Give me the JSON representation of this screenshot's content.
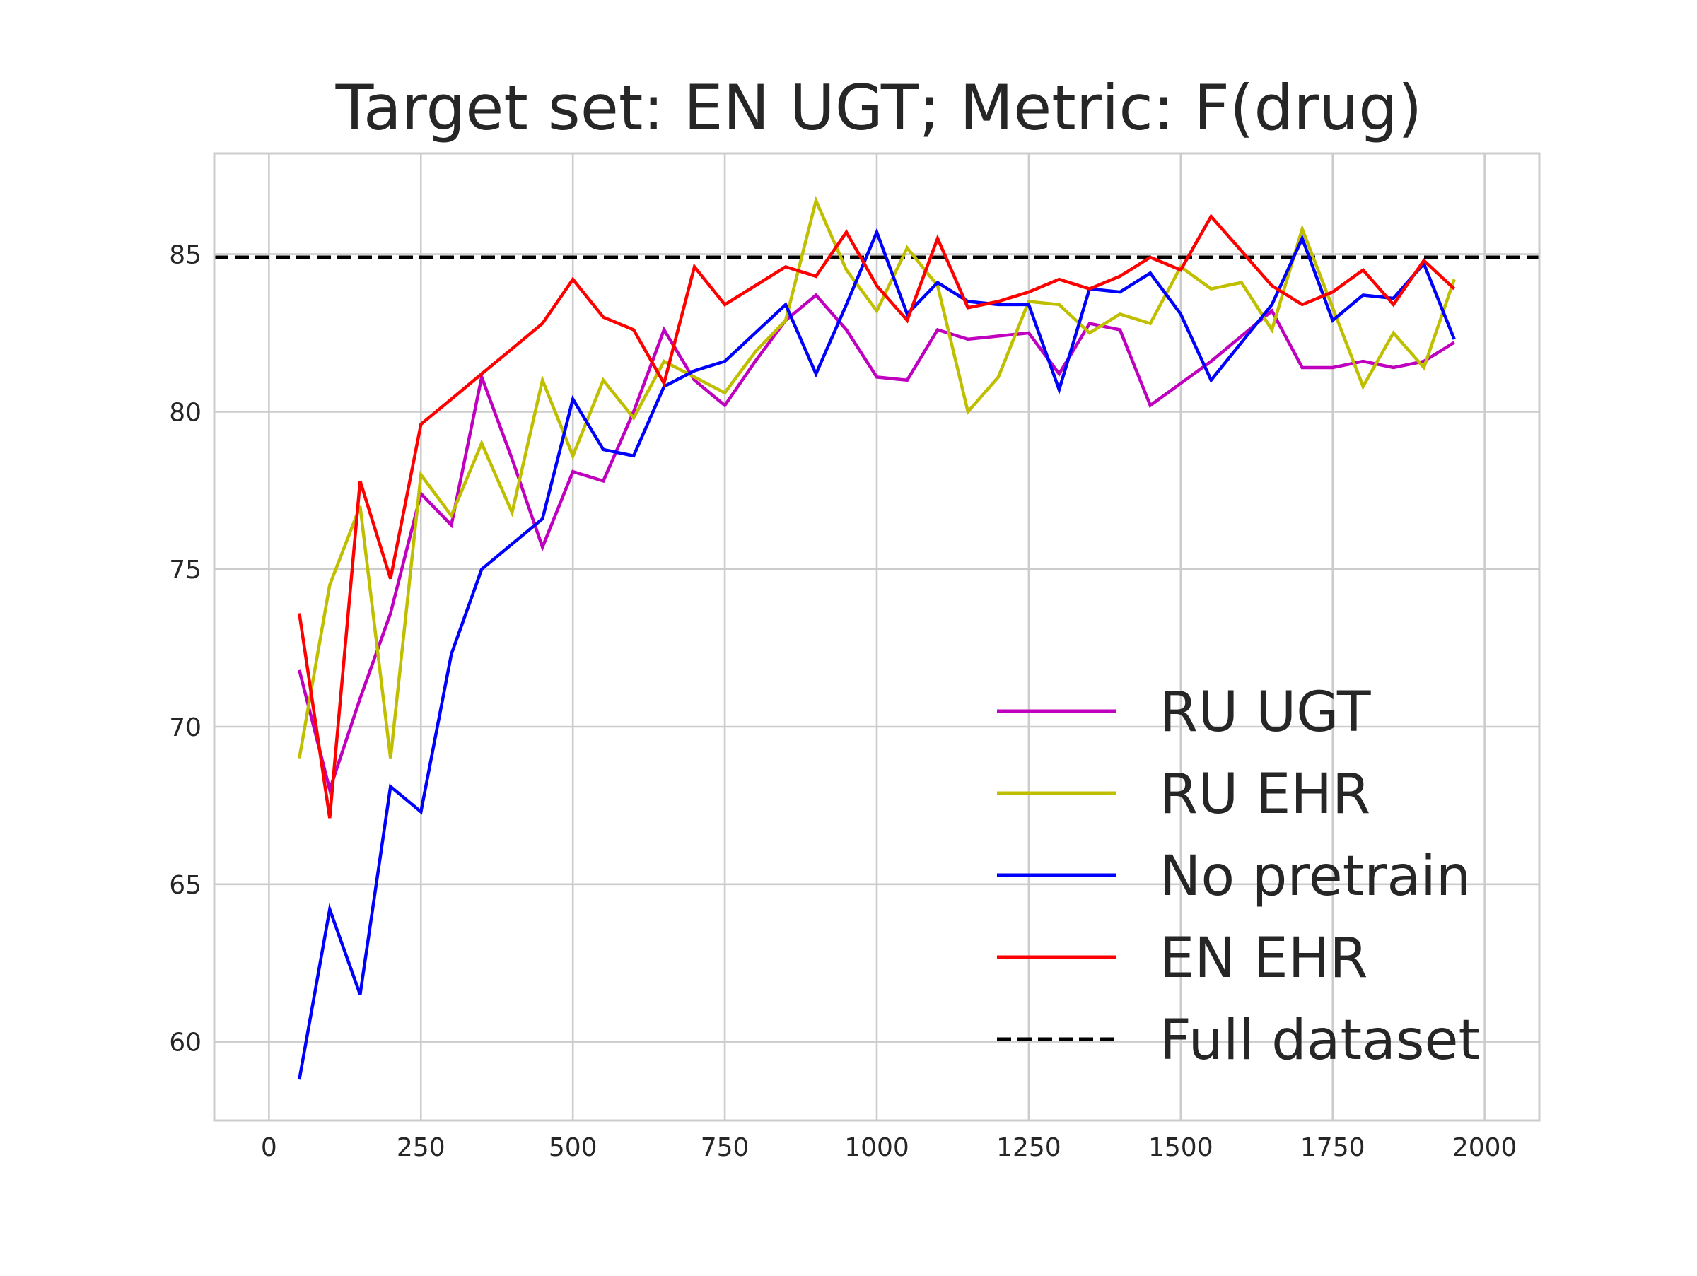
{
  "chart_data": {
    "type": "line",
    "title": "Target set: EN UGT; Metric: F(drug)",
    "xlabel": "",
    "ylabel": "",
    "xlim": [
      -90,
      2090
    ],
    "ylim": [
      57.5,
      88.2
    ],
    "xticks": [
      0,
      250,
      500,
      750,
      1000,
      1250,
      1500,
      1750,
      2000
    ],
    "yticks": [
      60,
      65,
      70,
      75,
      80,
      85
    ],
    "grid": true,
    "legend_position": "lower-right",
    "x": [
      50,
      100,
      150,
      200,
      250,
      300,
      350,
      400,
      450,
      500,
      550,
      600,
      650,
      700,
      750,
      800,
      850,
      900,
      950,
      1000,
      1050,
      1100,
      1150,
      1200,
      1250,
      1300,
      1350,
      1400,
      1450,
      1500,
      1550,
      1600,
      1650,
      1700,
      1750,
      1800,
      1850,
      1900,
      1950
    ],
    "series": [
      {
        "name": "RU UGT",
        "color": "#bf00bf",
        "values": [
          71.8,
          68.0,
          70.9,
          73.6,
          77.4,
          76.4,
          81.1,
          78.5,
          75.7,
          78.1,
          77.8,
          80.0,
          82.6,
          81.0,
          80.2,
          81.6,
          82.9,
          83.7,
          82.6,
          81.1,
          81.0,
          82.6,
          82.3,
          82.4,
          82.5,
          81.2,
          82.8,
          82.6,
          80.2,
          80.9,
          81.6,
          82.4,
          83.2,
          81.4,
          81.4,
          81.6,
          81.4,
          81.6,
          82.2
        ]
      },
      {
        "name": "RU EHR",
        "color": "#bfbf00",
        "values": [
          69.0,
          74.5,
          77.0,
          69.0,
          78.0,
          76.7,
          79.0,
          76.8,
          81.0,
          78.6,
          81.0,
          79.8,
          81.6,
          81.1,
          80.6,
          81.9,
          82.9,
          86.7,
          84.5,
          83.2,
          85.2,
          84.0,
          80.0,
          81.1,
          83.5,
          83.4,
          82.5,
          83.1,
          82.8,
          84.6,
          83.9,
          84.1,
          82.6,
          85.8,
          83.3,
          80.8,
          82.5,
          81.4,
          84.2
        ]
      },
      {
        "name": "No pretrain",
        "color": "#0000ff",
        "values": [
          58.8,
          64.2,
          61.5,
          68.1,
          67.3,
          72.3,
          75.0,
          75.8,
          76.6,
          80.4,
          78.8,
          78.6,
          80.8,
          81.3,
          81.6,
          82.5,
          83.4,
          81.2,
          83.4,
          85.7,
          83.1,
          84.1,
          83.5,
          83.4,
          83.4,
          80.7,
          83.9,
          83.8,
          84.4,
          83.1,
          81.0,
          82.2,
          83.4,
          85.5,
          82.9,
          83.7,
          83.6,
          84.7,
          82.3
        ]
      },
      {
        "name": "EN EHR",
        "color": "#ff0000",
        "values": [
          73.6,
          67.1,
          77.8,
          74.7,
          79.6,
          80.4,
          81.2,
          82.0,
          82.8,
          84.2,
          83.0,
          82.6,
          80.9,
          84.6,
          83.4,
          84.0,
          84.6,
          84.3,
          85.7,
          84.0,
          82.9,
          85.5,
          83.3,
          83.5,
          83.8,
          84.2,
          83.9,
          84.3,
          84.9,
          84.5,
          86.2,
          85.1,
          84.0,
          83.4,
          83.8,
          84.5,
          83.4,
          84.8,
          83.9
        ]
      }
    ],
    "reference_line": {
      "name": "Full dataset",
      "color": "#000000",
      "value": 84.9
    }
  }
}
